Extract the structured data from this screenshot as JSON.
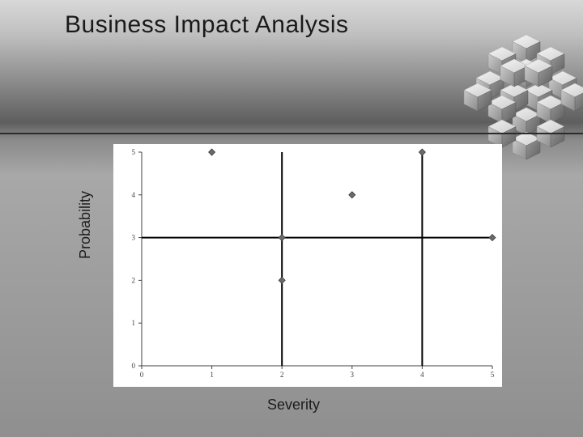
{
  "title": "Business Impact Analysis",
  "chart": {
    "type": "scatter",
    "xlabel": "Severity",
    "ylabel": "Probability",
    "xlim": [
      0,
      5
    ],
    "ylim": [
      0,
      5
    ],
    "xticks": [
      0,
      1,
      2,
      3,
      4,
      5
    ],
    "yticks": [
      0,
      1,
      2,
      3,
      4,
      5
    ],
    "tick_fontsize": 9,
    "tick_color": "#404040",
    "axis_color": "#404040",
    "background_color": "#ffffff",
    "quadrant_lines": {
      "x": 2,
      "y": 3,
      "extra_x": 4,
      "color": "#000000",
      "width": 2
    },
    "marker": {
      "shape": "diamond",
      "size": 8,
      "fill": "#6a6a6a",
      "stroke": "#3a3a3a"
    },
    "points": [
      {
        "x": 1.0,
        "y": 5.0
      },
      {
        "x": 3.0,
        "y": 4.0
      },
      {
        "x": 4.0,
        "y": 5.0
      },
      {
        "x": 2.0,
        "y": 3.0
      },
      {
        "x": 2.0,
        "y": 2.0
      },
      {
        "x": 5.0,
        "y": 3.0
      }
    ]
  },
  "label_fontsize": 18,
  "title_fontsize": 30,
  "colors": {
    "bg_top": "#d8d8d8",
    "bg_dark": "#5e5e5e",
    "text": "#1a1a1a"
  }
}
